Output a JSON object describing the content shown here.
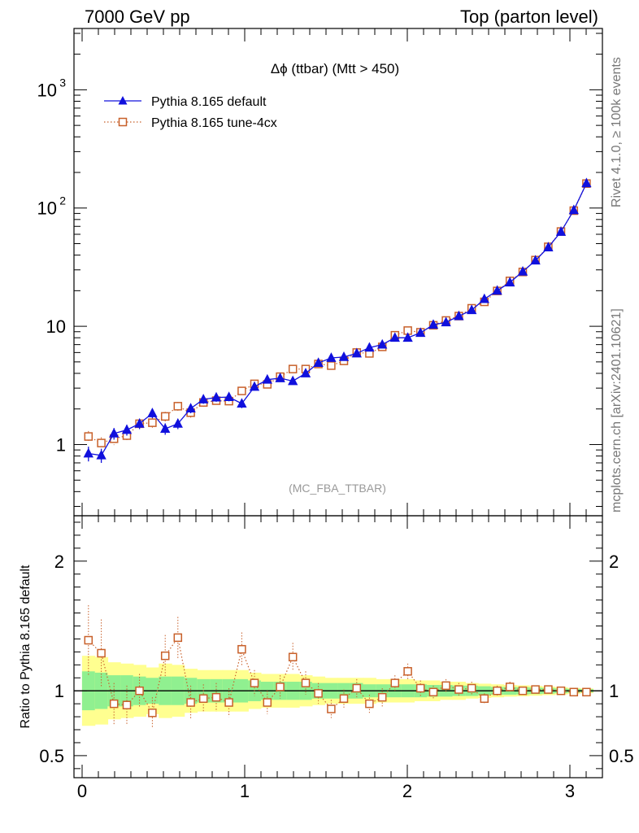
{
  "header": {
    "left": "7000 GeV pp",
    "right": "Top (parton level)"
  },
  "side_labels": {
    "rivet": "Rivet 4.1.0, ≥ 100k events",
    "mcplots": "mcplots.cern.ch [arXiv:2401.10621]"
  },
  "colors": {
    "default": "#1010dd",
    "tune": "#c8602a",
    "band_inner": "#90f090",
    "band_outer": "#ffff90"
  },
  "chart_data": [
    {
      "type": "line",
      "title": "Δϕ (ttbar) (Mtt > 450)",
      "analysis": "(MC_FBA_TTBAR)",
      "yscale": "log",
      "xlim": [
        -0.05,
        3.2
      ],
      "ylim": [
        0.25,
        3300
      ],
      "yticks": [
        {
          "value": 1000,
          "label": "10",
          "sup": "3"
        },
        {
          "value": 100,
          "label": "10",
          "sup": "2"
        },
        {
          "value": 10,
          "label": "10",
          "sup": ""
        },
        {
          "value": 1,
          "label": "1",
          "sup": ""
        }
      ],
      "x": [
        0.039,
        0.118,
        0.196,
        0.275,
        0.353,
        0.432,
        0.511,
        0.589,
        0.668,
        0.746,
        0.825,
        0.903,
        0.982,
        1.06,
        1.139,
        1.218,
        1.296,
        1.375,
        1.453,
        1.532,
        1.61,
        1.689,
        1.767,
        1.846,
        1.924,
        2.003,
        2.081,
        2.16,
        2.238,
        2.317,
        2.396,
        2.474,
        2.553,
        2.631,
        2.71,
        2.788,
        2.867,
        2.945,
        3.024,
        3.102
      ],
      "series": [
        {
          "name": "Pythia 8.165 default",
          "marker": "triangle",
          "values": [
            0.84,
            0.81,
            1.24,
            1.33,
            1.5,
            1.84,
            1.36,
            1.5,
            2.02,
            2.41,
            2.5,
            2.52,
            2.22,
            3.08,
            3.54,
            3.64,
            3.44,
            4.0,
            4.9,
            5.4,
            5.5,
            5.9,
            6.6,
            7.0,
            8.0,
            8.0,
            8.8,
            10.3,
            10.8,
            12.2,
            13.7,
            17.0,
            20.0,
            23.5,
            29.0,
            36.0,
            46.5,
            63.0,
            96.0,
            162.0
          ],
          "errors": [
            0.12,
            0.11,
            0.14,
            0.14,
            0.15,
            0.17,
            0.15,
            0.15,
            0.18,
            0.2,
            0.2,
            0.2,
            0.19,
            0.22,
            0.24,
            0.24,
            0.23,
            0.25,
            0.28,
            0.29,
            0.3,
            0.3,
            0.32,
            0.33,
            0.35,
            0.35,
            0.37,
            0.4,
            0.41,
            0.44,
            0.46,
            0.52,
            0.57,
            0.61,
            0.68,
            0.76,
            0.86,
            1.0,
            1.24,
            1.6
          ]
        },
        {
          "name": "Pythia 8.165 tune-4cx",
          "marker": "open-square",
          "values": [
            1.17,
            1.03,
            1.12,
            1.19,
            1.5,
            1.53,
            1.73,
            2.11,
            1.86,
            2.27,
            2.35,
            2.33,
            2.84,
            3.26,
            3.23,
            3.75,
            4.35,
            4.35,
            4.8,
            4.65,
            5.1,
            6.0,
            5.9,
            6.7,
            8.4,
            9.2,
            8.9,
            10.2,
            11.2,
            12.2,
            14.2,
            16.1,
            19.9,
            24.2,
            28.8,
            36.3,
            47.0,
            63.3,
            95.0,
            161.0
          ],
          "errors": [
            0.13,
            0.12,
            0.13,
            0.13,
            0.15,
            0.15,
            0.16,
            0.18,
            0.17,
            0.19,
            0.19,
            0.19,
            0.21,
            0.22,
            0.22,
            0.24,
            0.26,
            0.26,
            0.27,
            0.27,
            0.28,
            0.31,
            0.3,
            0.32,
            0.36,
            0.38,
            0.37,
            0.4,
            0.42,
            0.44,
            0.47,
            0.5,
            0.56,
            0.62,
            0.68,
            0.76,
            0.86,
            1.0,
            1.23,
            1.6
          ]
        }
      ]
    },
    {
      "type": "line",
      "ylabel": "Ratio to Pythia 8.165 default",
      "xlim": [
        -0.05,
        3.2
      ],
      "ylim": [
        0.33,
        2.35
      ],
      "yticks": [
        {
          "value": 2,
          "label": "2"
        },
        {
          "value": 1,
          "label": "1"
        },
        {
          "value": 0.5,
          "label": "0.5"
        }
      ],
      "xticks": [
        {
          "value": 0,
          "label": "0"
        },
        {
          "value": 1,
          "label": "1"
        },
        {
          "value": 2,
          "label": "2"
        },
        {
          "value": 3,
          "label": "3"
        }
      ],
      "band_inner_halfwidth": [
        0.15,
        0.14,
        0.12,
        0.12,
        0.11,
        0.1,
        0.11,
        0.11,
        0.1,
        0.09,
        0.09,
        0.09,
        0.09,
        0.08,
        0.07,
        0.07,
        0.07,
        0.07,
        0.06,
        0.06,
        0.06,
        0.06,
        0.05,
        0.05,
        0.05,
        0.05,
        0.05,
        0.045,
        0.045,
        0.04,
        0.04,
        0.035,
        0.03,
        0.03,
        0.028,
        0.025,
        0.022,
        0.018,
        0.015,
        0.012
      ],
      "band_outer_halfwidth": [
        0.27,
        0.26,
        0.22,
        0.21,
        0.2,
        0.18,
        0.21,
        0.2,
        0.17,
        0.16,
        0.16,
        0.16,
        0.16,
        0.14,
        0.13,
        0.13,
        0.13,
        0.12,
        0.11,
        0.1,
        0.1,
        0.1,
        0.1,
        0.09,
        0.09,
        0.09,
        0.08,
        0.08,
        0.07,
        0.07,
        0.06,
        0.055,
        0.05,
        0.045,
        0.042,
        0.038,
        0.033,
        0.028,
        0.022,
        0.018
      ],
      "series": [
        {
          "name": "Pythia 8.165 tune-4cx / default",
          "marker": "open-square",
          "values": [
            1.39,
            1.29,
            0.9,
            0.89,
            1.0,
            0.83,
            1.27,
            1.41,
            0.91,
            0.94,
            0.95,
            0.91,
            1.32,
            1.06,
            0.91,
            1.03,
            1.26,
            1.06,
            0.98,
            0.86,
            0.94,
            1.02,
            0.9,
            0.95,
            1.06,
            1.15,
            1.02,
            0.99,
            1.04,
            1.01,
            1.02,
            0.94,
            1.0,
            1.03,
            1.0,
            1.01,
            1.01,
            1.0,
            0.99,
            0.99
          ],
          "errors": [
            0.27,
            0.26,
            0.16,
            0.15,
            0.13,
            0.12,
            0.16,
            0.16,
            0.13,
            0.11,
            0.11,
            0.11,
            0.13,
            0.1,
            0.09,
            0.09,
            0.11,
            0.09,
            0.08,
            0.07,
            0.07,
            0.07,
            0.07,
            0.07,
            0.06,
            0.06,
            0.06,
            0.05,
            0.05,
            0.05,
            0.05,
            0.04,
            0.04,
            0.04,
            0.03,
            0.03,
            0.03,
            0.02,
            0.02,
            0.02
          ]
        }
      ]
    }
  ]
}
